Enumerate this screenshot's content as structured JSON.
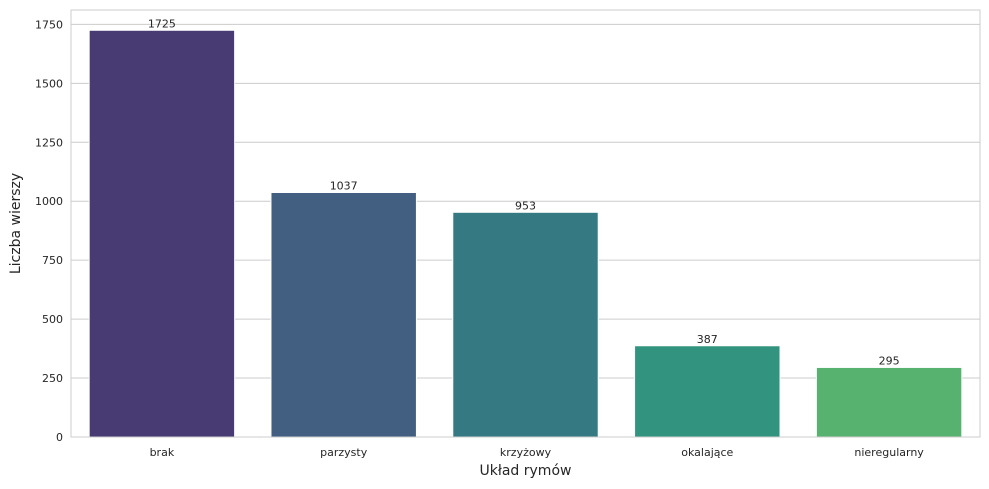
{
  "chart_data": {
    "type": "bar",
    "categories": [
      "brak",
      "parzysty",
      "krzyżowy",
      "okalające",
      "nieregularny"
    ],
    "values": [
      1725,
      1037,
      953,
      387,
      295
    ],
    "colors": [
      "#483a73",
      "#425f82",
      "#357a82",
      "#32937e",
      "#57b26f"
    ],
    "title": "",
    "xlabel": "Układ rymów",
    "ylabel": "Liczba wierszy",
    "ylim": [
      0,
      1811
    ],
    "yticks": [
      0,
      250,
      500,
      750,
      1000,
      1250,
      1500,
      1750
    ],
    "grid": true,
    "grid_axis": "y",
    "show_data_labels": true
  }
}
